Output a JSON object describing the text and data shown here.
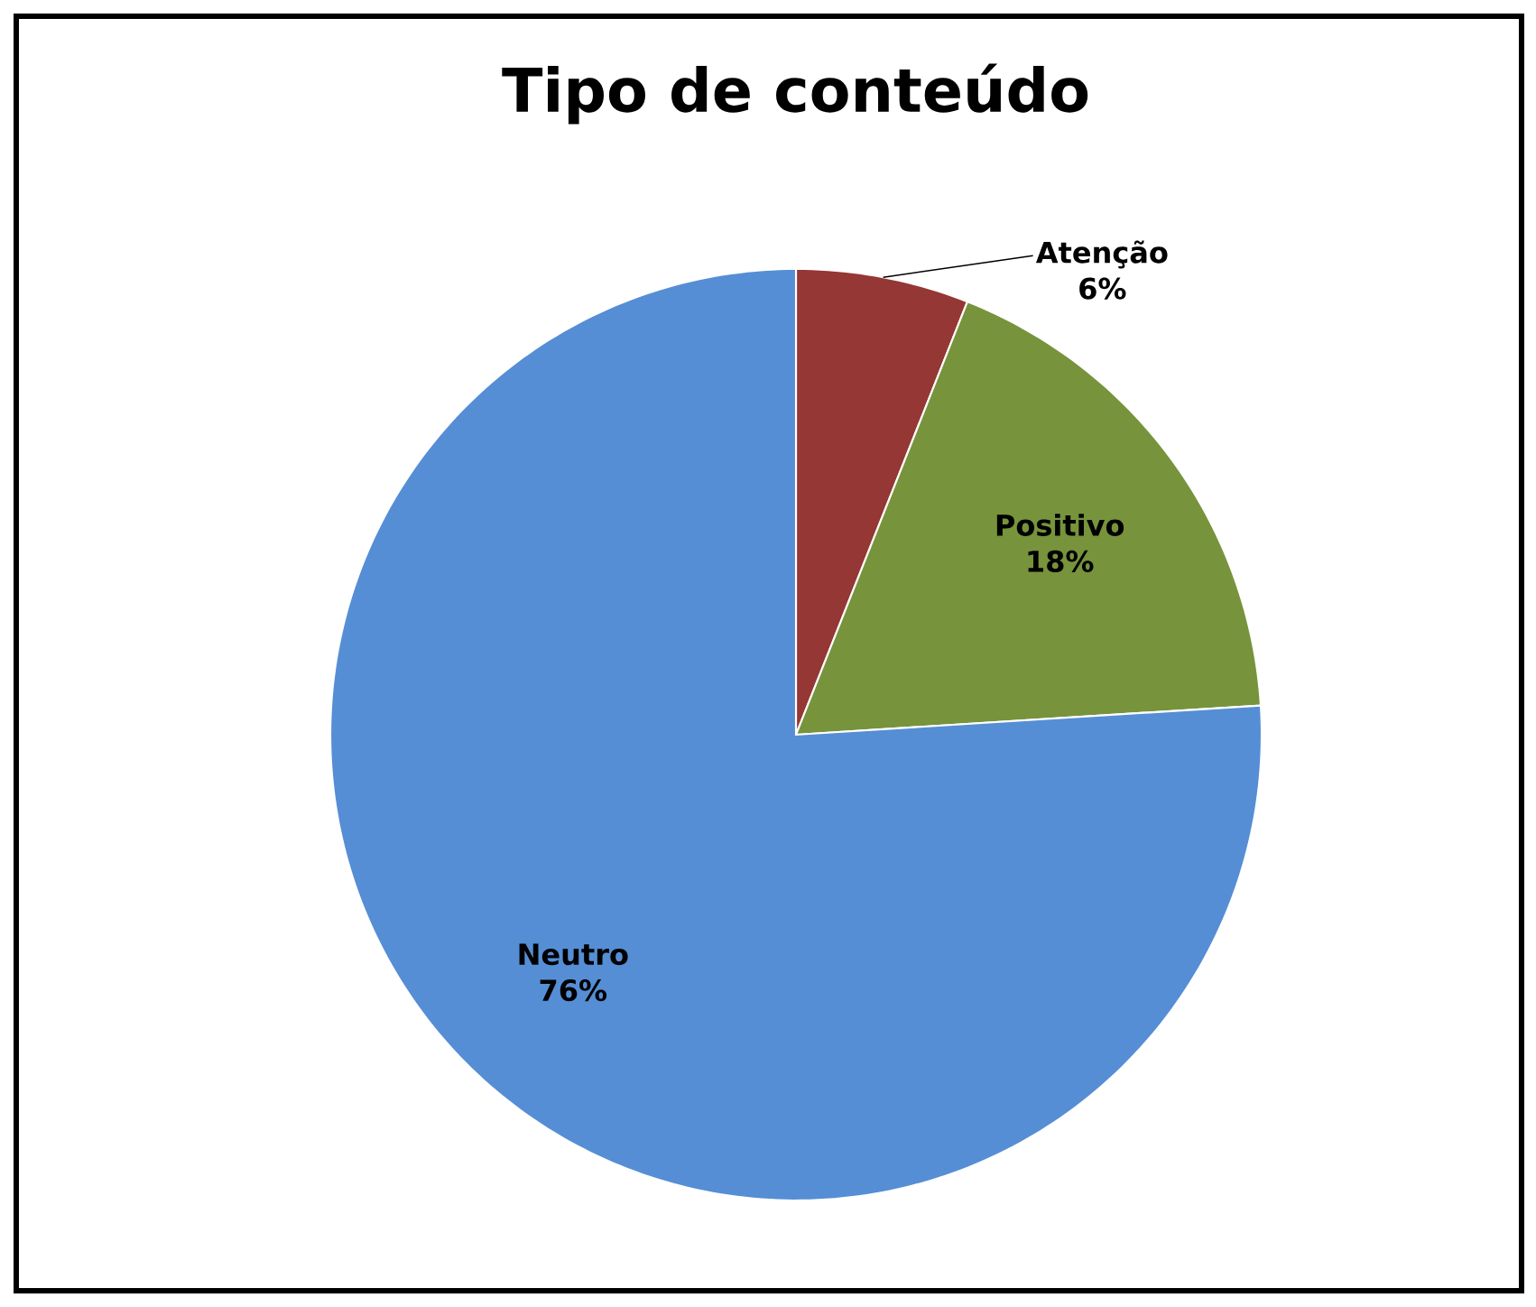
{
  "chart_data": {
    "type": "pie",
    "title": "Tipo de conteúdo",
    "categories": [
      "Atenção",
      "Positivo",
      "Neutro"
    ],
    "values": [
      6,
      18,
      76
    ],
    "value_labels": [
      "6%",
      "18%",
      "76%"
    ],
    "colors": [
      "#953735",
      "#77933c",
      "#558ed5"
    ]
  }
}
